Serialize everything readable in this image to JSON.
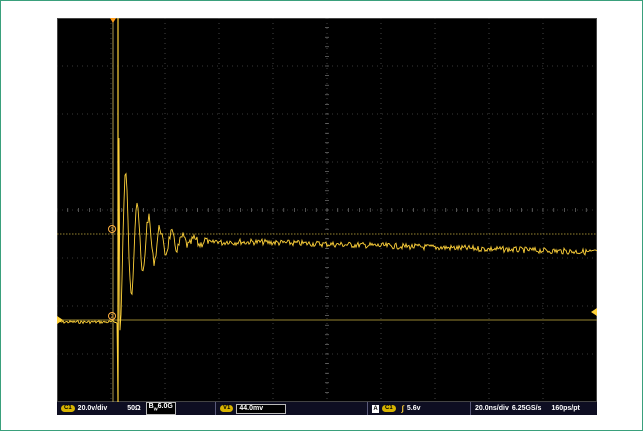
{
  "status_bar": {
    "channel_badge": "C1",
    "volts_per_div": "20.0v/div",
    "impedance": "50Ω",
    "bandwidth_prefix": "B",
    "bandwidth_sub": "w",
    "bandwidth_value": "6.0G",
    "cursor_badge": "V1",
    "cursor_value": "44.0mv",
    "trigger_mode": "A",
    "trigger_source_badge": "C1",
    "trigger_level": "5.6v",
    "timebase": "20.0ns/div",
    "sample_rate": "6.25GS/s",
    "resolution": "160ps/pt"
  },
  "markers": {
    "trigger_pos_icon": "trigger-position-triangle",
    "channel_ref_icon": "channel-reference-arrow",
    "trigger_level_icon": "trigger-level-arrow",
    "cursor_label_1": "1",
    "cursor_label_2": "2"
  },
  "colors": {
    "trace": "#ffd23a",
    "grid": "#6e6e6e",
    "cursor_line": "#c8b040",
    "background": "#000000"
  }
}
